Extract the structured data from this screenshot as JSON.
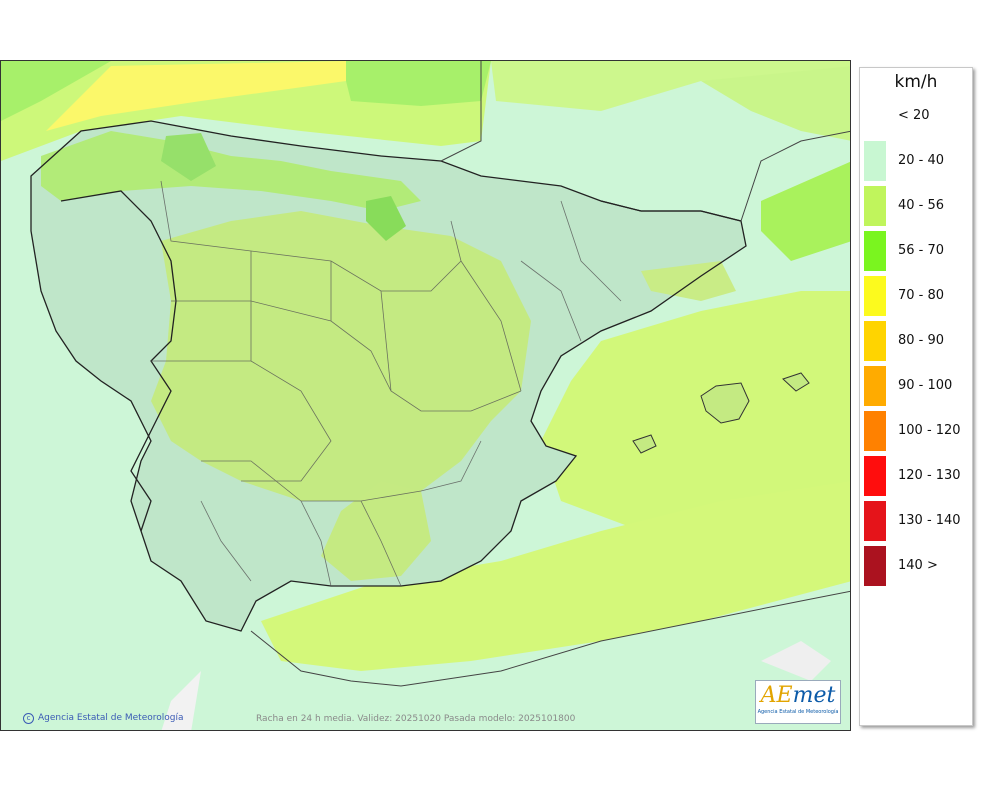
{
  "credit": "Agencia Estatal de Meteorología",
  "caption": "Racha en 24 h media. Validez: 20251020 Pasada modelo: 2025101800",
  "logo": {
    "word_a": "AE",
    "word_b": "met",
    "sub": "Agencia Estatal de Meteorología"
  },
  "legend": {
    "unit": "km/h",
    "classes": [
      {
        "label": "< 20",
        "color": "#ffffff"
      },
      {
        "label": "20 - 40",
        "color": "#c8f7d2"
      },
      {
        "label": "40 - 56",
        "color": "#c0f55c"
      },
      {
        "label": "56 - 70",
        "color": "#7af51f"
      },
      {
        "label": "70 - 80",
        "color": "#fcfa1e"
      },
      {
        "label": "80 - 90",
        "color": "#ffd400"
      },
      {
        "label": "90 - 100",
        "color": "#ffab00"
      },
      {
        "label": "100 - 120",
        "color": "#ff8100"
      },
      {
        "label": "120 - 130",
        "color": "#ff0d0d"
      },
      {
        "label": "130 - 140",
        "color": "#e5141a"
      },
      {
        "label": "140 >",
        "color": "#ab121f"
      }
    ]
  }
}
